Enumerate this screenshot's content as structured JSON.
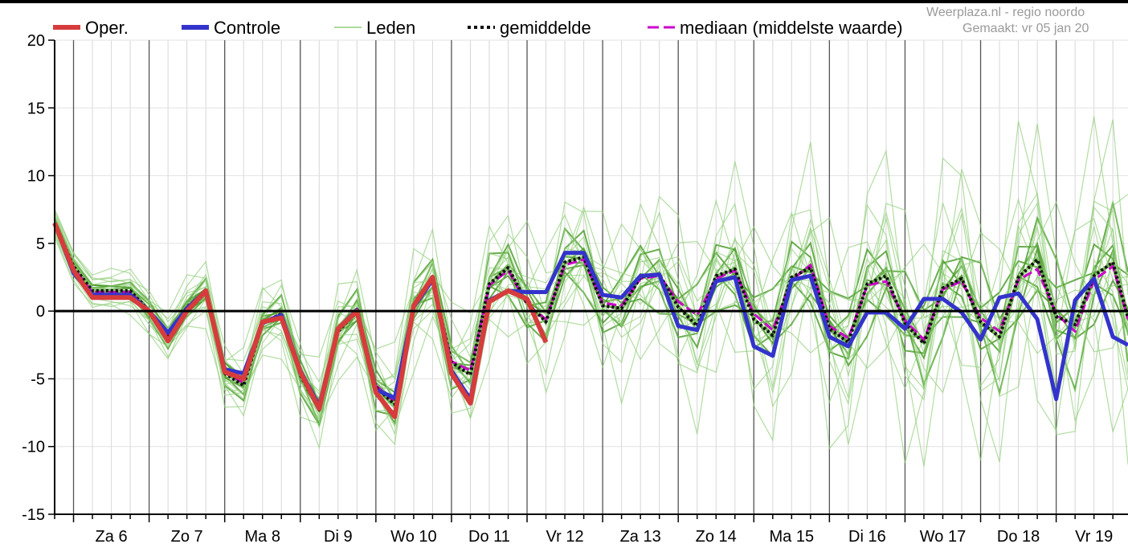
{
  "chart_data": {
    "type": "line",
    "title": "",
    "xlabel": "",
    "ylabel": "",
    "ylim": [
      -15,
      20
    ],
    "yticks": [
      -15,
      -10,
      -5,
      0,
      5,
      10,
      15,
      20
    ],
    "ytick_labels": [
      "-15",
      "-10",
      "-5",
      "0",
      "5",
      "10",
      "15",
      "20"
    ],
    "x_unit": "days",
    "xlim": [
      0,
      14.2
    ],
    "categories": [
      "Za 6",
      "Zo 7",
      "Ma 8",
      "Di 9",
      "Wo 10",
      "Do 11",
      "Vr 12",
      "Za 13",
      "Zo 14",
      "Ma 15",
      "Di 16",
      "Wo 17",
      "Do 18",
      "Vr 19"
    ],
    "day_boundaries": [
      0.25,
      1.25,
      2.25,
      3.25,
      4.25,
      5.25,
      6.25,
      7.25,
      8.25,
      9.25,
      10.25,
      11.25,
      12.25,
      13.25
    ],
    "grid": true,
    "legend_position": "top",
    "legend": [
      {
        "name": "Oper.",
        "color": "#d63c3c",
        "style": "thick"
      },
      {
        "name": "Controle",
        "color": "#3333cc",
        "style": "thick"
      },
      {
        "name": "Leden",
        "color": "#8fcf7a",
        "style": "thin"
      },
      {
        "name": "gemiddelde",
        "color": "#111111",
        "style": "dotted"
      },
      {
        "name": "mediaan (middelste waarde)",
        "color": "#cc00cc",
        "style": "dashed"
      }
    ],
    "credits": [
      "Weerplaza.nl - regio noordo",
      "Gemaakt: vr 05 jan 20"
    ],
    "series": [
      {
        "name": "Oper.",
        "color": "#d63c3c",
        "x": [
          0,
          0.25,
          0.5,
          0.75,
          1,
          1.25,
          1.5,
          1.75,
          2,
          2.25,
          2.5,
          2.75,
          3,
          3.25,
          3.5,
          3.75,
          4,
          4.25,
          4.5,
          4.75,
          5,
          5.25,
          5.5,
          5.75,
          6,
          6.25,
          6.5
        ],
        "y": [
          6.5,
          3.0,
          1.0,
          1.0,
          1.0,
          0,
          -2.2,
          0,
          1.5,
          -4.5,
          -5.0,
          -0.8,
          -0.5,
          -4.5,
          -7.2,
          -1.3,
          0,
          -6.0,
          -7.8,
          0.4,
          2.5,
          -4.6,
          -6.8,
          0.7,
          1.5,
          0.9,
          -2.3
        ]
      },
      {
        "name": "Controle",
        "color": "#3333cc",
        "x": [
          0,
          0.25,
          0.5,
          0.75,
          1,
          1.25,
          1.5,
          1.75,
          2,
          2.25,
          2.5,
          2.75,
          3,
          3.25,
          3.5,
          3.75,
          4,
          4.25,
          4.5,
          4.75,
          5,
          5.25,
          5.5,
          5.75,
          6,
          6.25,
          6.5,
          6.75,
          7,
          7.25,
          7.5,
          7.75,
          8,
          8.25,
          8.5,
          8.75,
          9,
          9.25,
          9.5,
          9.75,
          10,
          10.25,
          10.5,
          10.75,
          11,
          11.25,
          11.5,
          11.75,
          12,
          12.25,
          12.5,
          12.75,
          13,
          13.25,
          13.5,
          13.75,
          14,
          14.2
        ],
        "y": [
          6.5,
          2.8,
          1.2,
          1.2,
          1.2,
          0,
          -1.6,
          0.2,
          1.5,
          -4.3,
          -4.6,
          -0.9,
          -0.3,
          -4.4,
          -7.0,
          -1.3,
          0.1,
          -5.8,
          -6.4,
          0.3,
          2.3,
          -4.4,
          -6.5,
          0.8,
          1.5,
          1.4,
          1.4,
          4.3,
          4.3,
          1.2,
          1.0,
          2.6,
          2.7,
          -1.1,
          -1.4,
          2.2,
          2.5,
          -2.6,
          -3.3,
          2.3,
          2.6,
          -1.9,
          -2.6,
          -0.1,
          -0.1,
          -1.3,
          0.9,
          0.9,
          -0.1,
          -2.1,
          1.0,
          1.3,
          -0.6,
          -6.5,
          0.8,
          2.4,
          -1.9,
          -2.5
        ]
      },
      {
        "name": "gemiddelde",
        "color": "#111111",
        "x": [
          0,
          0.25,
          0.5,
          0.75,
          1,
          1.25,
          1.5,
          1.75,
          2,
          2.25,
          2.5,
          2.75,
          3,
          3.25,
          3.5,
          3.75,
          4,
          4.25,
          4.5,
          4.75,
          5,
          5.25,
          5.5,
          5.75,
          6,
          6.25,
          6.5,
          6.75,
          7,
          7.25,
          7.5,
          7.75,
          8,
          8.25,
          8.5,
          8.75,
          9,
          9.25,
          9.5,
          9.75,
          10,
          10.25,
          10.5,
          10.75,
          11,
          11.25,
          11.5,
          11.75,
          12,
          12.25,
          12.5,
          12.75,
          13,
          13.25,
          13.5,
          13.75,
          14,
          14.2
        ],
        "y": [
          6.5,
          3.3,
          1.5,
          1.5,
          1.5,
          0,
          -1.9,
          0.3,
          1.4,
          -4.6,
          -5.5,
          -0.9,
          -0.2,
          -4.7,
          -7.3,
          -1.5,
          0,
          -5.6,
          -6.9,
          0.4,
          2.3,
          -3.8,
          -4.7,
          2.0,
          3.2,
          0.6,
          -0.8,
          3.6,
          4.0,
          0.4,
          0.2,
          2.5,
          2.7,
          0.3,
          -1.1,
          2.6,
          3.1,
          -0.6,
          -1.8,
          2.5,
          3.2,
          -1.3,
          -2.3,
          2.0,
          2.6,
          -0.9,
          -2.4,
          1.7,
          2.4,
          -0.8,
          -1.9,
          2.5,
          3.8,
          -0.4,
          -1.0,
          2.6,
          3.6,
          -0.5
        ]
      },
      {
        "name": "mediaan (middelste waarde)",
        "color": "#cc00cc",
        "x": [
          0,
          0.25,
          0.5,
          0.75,
          1,
          1.25,
          1.5,
          1.75,
          2,
          2.25,
          2.5,
          2.75,
          3,
          3.25,
          3.5,
          3.75,
          4,
          4.25,
          4.5,
          4.75,
          5,
          5.25,
          5.5,
          5.75,
          6,
          6.25,
          6.5,
          6.75,
          7,
          7.25,
          7.5,
          7.75,
          8,
          8.25,
          8.5,
          8.75,
          9,
          9.25,
          9.5,
          9.75,
          10,
          10.25,
          10.5,
          10.75,
          11,
          11.25,
          11.5,
          11.75,
          12,
          12.25,
          12.5,
          12.75,
          13,
          13.25,
          13.5,
          13.75,
          14,
          14.2
        ],
        "y": [
          6.5,
          3.2,
          1.4,
          1.4,
          1.4,
          0,
          -1.9,
          0.3,
          1.4,
          -4.5,
          -5.3,
          -0.8,
          -0.2,
          -4.6,
          -7.2,
          -1.4,
          0,
          -5.5,
          -6.7,
          0.4,
          2.2,
          -3.7,
          -4.4,
          1.9,
          3.0,
          0.5,
          -0.6,
          3.4,
          3.8,
          0.6,
          0.4,
          2.4,
          2.6,
          0.7,
          -0.3,
          2.4,
          3.0,
          -0.2,
          -1.4,
          2.3,
          3.4,
          -1.1,
          -2.0,
          1.9,
          2.2,
          -0.7,
          -2.1,
          1.6,
          2.2,
          -0.5,
          -1.5,
          2.3,
          3.1,
          -0.2,
          -1.5,
          2.3,
          3.3,
          -0.6
        ]
      }
    ],
    "members": [
      {
        "y_offset": 0.0,
        "amp": 0.0
      },
      {
        "y_offset": 0.4,
        "amp": 0.8
      },
      {
        "y_offset": -0.4,
        "amp": 0.8
      },
      {
        "y_offset": 0.8,
        "amp": 1.5
      },
      {
        "y_offset": -0.8,
        "amp": 1.5
      },
      {
        "y_offset": 1.2,
        "amp": 2.2
      },
      {
        "y_offset": -1.2,
        "amp": 2.2
      },
      {
        "y_offset": 1.6,
        "amp": 3.0
      },
      {
        "y_offset": -1.6,
        "amp": 3.0
      },
      {
        "y_offset": 2.0,
        "amp": 3.6
      },
      {
        "y_offset": -2.0,
        "amp": 3.6
      },
      {
        "y_offset": 2.5,
        "amp": 4.5
      },
      {
        "y_offset": -2.5,
        "amp": 4.5
      },
      {
        "y_offset": 3.0,
        "amp": 5.5
      },
      {
        "y_offset": -3.0,
        "amp": 5.5
      },
      {
        "y_offset": 3.6,
        "amp": 6.5
      },
      {
        "y_offset": -3.6,
        "amp": 6.5
      },
      {
        "y_offset": 4.2,
        "amp": 7.5
      },
      {
        "y_offset": -4.2,
        "amp": 7.5
      },
      {
        "y_offset": 0.2,
        "amp": 2.8
      },
      {
        "y_offset": -0.2,
        "amp": 2.8
      },
      {
        "y_offset": 1.0,
        "amp": 4.0
      },
      {
        "y_offset": -1.0,
        "amp": 4.0
      },
      {
        "y_offset": 0.6,
        "amp": 5.0
      },
      {
        "y_offset": -0.6,
        "amp": 5.0
      }
    ]
  }
}
